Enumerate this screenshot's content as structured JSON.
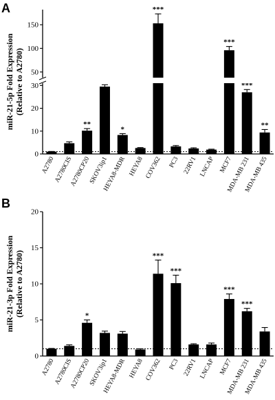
{
  "chart_data": [
    {
      "type": "bar",
      "panel": "A",
      "ylabel": "miR-21-5p Fold Expression (Relative to A2780)",
      "ylabel_lines": [
        "miR-21-5p Fold Expression",
        "(Relative to A2780)"
      ],
      "y_broken": true,
      "y_ticks": [
        0,
        10,
        20,
        30,
        50,
        100,
        150
      ],
      "ylim_lower": [
        0,
        31
      ],
      "ylim_upper": [
        38,
        182
      ],
      "baseline": 1,
      "categories": [
        "A2780",
        "A2780CIS",
        "A2780CP20",
        "SKOV3ip1",
        "HEYA8-MDR",
        "HEYA8",
        "COV362",
        "PC3",
        "22RV1",
        "LNCAP",
        "MCF7",
        "MDA-MB 231",
        "MDA-MB 435"
      ],
      "values": [
        1,
        4.7,
        10.2,
        29.5,
        8.3,
        2.6,
        153,
        3.3,
        2.4,
        1.9,
        96,
        27,
        9.4
      ],
      "errors": [
        0.1,
        0.6,
        0.9,
        0.8,
        0.6,
        0.2,
        20,
        0.4,
        0.3,
        0.2,
        8,
        1.2,
        1.3
      ],
      "significance": [
        "",
        "",
        "**",
        "***",
        "*",
        "",
        "***",
        "",
        "",
        "",
        "***",
        "***",
        "**"
      ]
    },
    {
      "type": "bar",
      "panel": "B",
      "ylabel": "miR-21-3p Fold Expression (Relative to A2780)",
      "ylabel_lines": [
        "miR-21-3p Fold Expression",
        "(Relative to A2780)"
      ],
      "y_ticks": [
        0,
        5,
        10,
        15,
        20
      ],
      "ylim": [
        0,
        20
      ],
      "baseline": 1,
      "categories": [
        "A2780",
        "A2780CIS",
        "A2780CP20",
        "SKOV3ip1",
        "HEYA8-MDR",
        "HEYA8",
        "COV362",
        "PC3",
        "22RV1",
        "LNCAP",
        "MCF7",
        "MDA-MB 231",
        "MDA-MB 435"
      ],
      "values": [
        1,
        1.4,
        4.6,
        3.2,
        3.1,
        0.9,
        11.4,
        10.1,
        1.6,
        1.6,
        7.9,
        6.2,
        3.4
      ],
      "errors": [
        0.05,
        0.15,
        0.4,
        0.25,
        0.3,
        0.1,
        1.9,
        1.1,
        0.1,
        0.2,
        0.7,
        0.4,
        0.55
      ],
      "significance": [
        "",
        "",
        "*",
        "",
        "",
        "",
        "***",
        "***",
        "",
        "",
        "***",
        "***",
        ""
      ]
    }
  ]
}
